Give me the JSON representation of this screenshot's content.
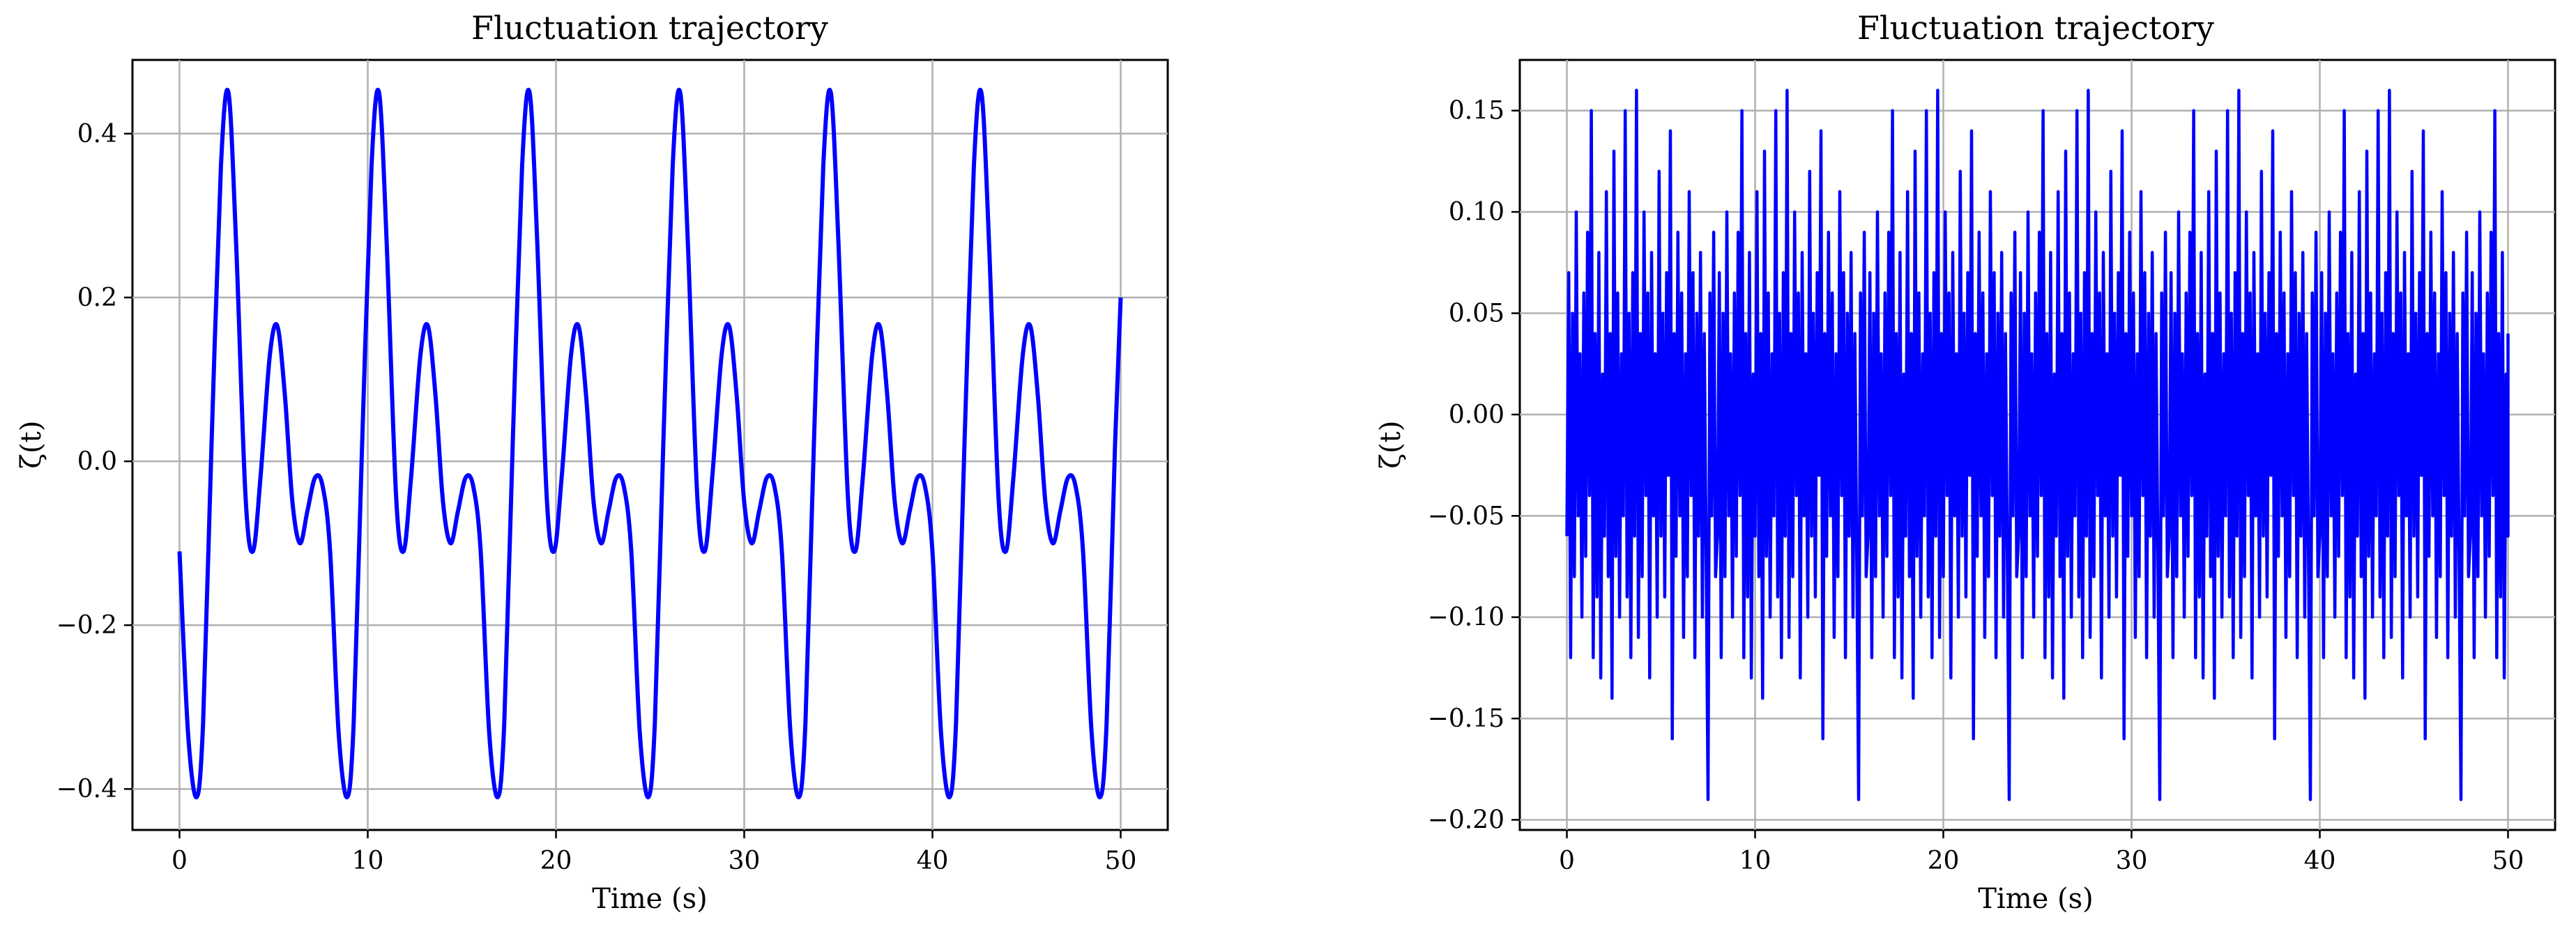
{
  "chart_data": [
    {
      "type": "line",
      "title": "Fluctuation trajectory",
      "xlabel": "Time (s)",
      "ylabel": "ζ(t)",
      "xlim": [
        -2.5,
        52.5
      ],
      "ylim": [
        -0.45,
        0.49
      ],
      "xticks": [
        0,
        10,
        20,
        30,
        40,
        50
      ],
      "xtick_labels": [
        "0",
        "10",
        "20",
        "30",
        "40",
        "50"
      ],
      "yticks": [
        -0.4,
        -0.2,
        0.0,
        0.2,
        0.4
      ],
      "ytick_labels": [
        "−0.4",
        "−0.2",
        "0.0",
        "0.2",
        "0.4"
      ],
      "grid": true,
      "period": 8.0,
      "series": [
        {
          "color": "#0000ff",
          "x": [
            0,
            0.45,
            0.9,
            1.25,
            1.7,
            2.2,
            2.6,
            3.0,
            3.5,
            3.9,
            4.3,
            4.8,
            5.2,
            5.6,
            6.0,
            6.4,
            6.8,
            7.2,
            7.6,
            8.0,
            8.45,
            8.9,
            9.25,
            9.7,
            10.2,
            10.6,
            11.0,
            11.5,
            11.9,
            12.3,
            12.8,
            13.2,
            13.6,
            14.0,
            14.4,
            14.8,
            15.2,
            15.6,
            16.0,
            16.45,
            16.9,
            17.25,
            17.7,
            18.2,
            18.6,
            19.0,
            19.5,
            19.9,
            20.3,
            20.8,
            21.2,
            21.6,
            22.0,
            22.4,
            22.8,
            23.2,
            23.6,
            24.0,
            24.45,
            24.9,
            25.25,
            25.7,
            26.2,
            26.6,
            27.0,
            27.5,
            27.9,
            28.3,
            28.8,
            29.2,
            29.6,
            30.0,
            30.4,
            30.8,
            31.2,
            31.6,
            32.0,
            32.45,
            32.9,
            33.25,
            33.7,
            34.2,
            34.6,
            35.0,
            35.5,
            35.9,
            36.3,
            36.8,
            37.2,
            37.6,
            38.0,
            38.4,
            38.8,
            39.2,
            39.6,
            40.0,
            40.45,
            40.9,
            41.25,
            41.7,
            42.2,
            42.6,
            43.0,
            43.5,
            43.9,
            44.3,
            44.8,
            45.2,
            45.6,
            46.0,
            46.4,
            46.8,
            47.2,
            47.6,
            48.0,
            48.45,
            48.9,
            49.25,
            49.7,
            50.0
          ],
          "y": [
            -0.11,
            -0.33,
            -0.41,
            -0.32,
            0.02,
            0.36,
            0.45,
            0.27,
            -0.04,
            -0.11,
            -0.02,
            0.13,
            0.165,
            0.08,
            -0.05,
            -0.1,
            -0.06,
            -0.02,
            -0.03,
            -0.11,
            -0.33,
            -0.41,
            -0.32,
            0.02,
            0.36,
            0.45,
            0.27,
            -0.04,
            -0.11,
            -0.02,
            0.13,
            0.165,
            0.08,
            -0.05,
            -0.1,
            -0.06,
            -0.02,
            -0.03,
            -0.11,
            -0.33,
            -0.41,
            -0.32,
            0.02,
            0.36,
            0.45,
            0.27,
            -0.04,
            -0.11,
            -0.02,
            0.13,
            0.165,
            0.08,
            -0.05,
            -0.1,
            -0.06,
            -0.02,
            -0.03,
            -0.11,
            -0.33,
            -0.41,
            -0.32,
            0.02,
            0.36,
            0.45,
            0.27,
            -0.04,
            -0.11,
            -0.02,
            0.13,
            0.165,
            0.08,
            -0.05,
            -0.1,
            -0.06,
            -0.02,
            -0.03,
            -0.11,
            -0.33,
            -0.41,
            -0.32,
            0.02,
            0.36,
            0.45,
            0.27,
            -0.04,
            -0.11,
            -0.02,
            0.13,
            0.165,
            0.08,
            -0.05,
            -0.1,
            -0.06,
            -0.02,
            -0.03,
            -0.11,
            -0.33,
            -0.41,
            -0.32,
            0.02,
            0.36,
            0.45,
            0.27,
            -0.04,
            -0.11,
            -0.02,
            0.13,
            0.165,
            0.08,
            -0.05,
            -0.1,
            -0.06,
            -0.02,
            -0.03,
            -0.11,
            -0.33,
            -0.41,
            -0.32,
            0.02,
            0.2
          ]
        }
      ]
    },
    {
      "type": "line",
      "title": "Fluctuation trajectory",
      "xlabel": "Time (s)",
      "ylabel": "ζ(t)",
      "xlim": [
        -2.5,
        52.5
      ],
      "ylim": [
        -0.205,
        0.175
      ],
      "xticks": [
        0,
        10,
        20,
        30,
        40,
        50
      ],
      "xtick_labels": [
        "0",
        "10",
        "20",
        "30",
        "40",
        "50"
      ],
      "yticks": [
        -0.2,
        -0.15,
        -0.1,
        -0.05,
        0.0,
        0.05,
        0.1,
        0.15
      ],
      "ytick_labels": [
        "−0.20",
        "−0.15",
        "−0.10",
        "−0.05",
        "0.00",
        "0.05",
        "0.10",
        "0.15"
      ],
      "grid": true,
      "period": 8.0,
      "series": [
        {
          "color": "#0000ff",
          "x": [
            0.0,
            0.1,
            0.2,
            0.3,
            0.4,
            0.5,
            0.6,
            0.7,
            0.8,
            0.9,
            1.0,
            1.1,
            1.2,
            1.3,
            1.4,
            1.5,
            1.6,
            1.7,
            1.8,
            1.9,
            2.0,
            2.1,
            2.2,
            2.3,
            2.4,
            2.5,
            2.6,
            2.7,
            2.8,
            2.9,
            3.0,
            3.1,
            3.2,
            3.3,
            3.4,
            3.5,
            3.6,
            3.7,
            3.8,
            3.9,
            4.0,
            4.1,
            4.2,
            4.3,
            4.4,
            4.5,
            4.6,
            4.7,
            4.8,
            4.9,
            5.0,
            5.1,
            5.2,
            5.3,
            5.4,
            5.5,
            5.6,
            5.7,
            5.8,
            5.9,
            6.0,
            6.1,
            6.2,
            6.3,
            6.4,
            6.5,
            6.6,
            6.7,
            6.8,
            6.9,
            7.0,
            7.1,
            7.2,
            7.3,
            7.4,
            7.5,
            7.6,
            7.7,
            7.8,
            7.9
          ],
          "y": [
            -0.06,
            0.07,
            -0.12,
            0.05,
            -0.08,
            0.1,
            -0.05,
            0.03,
            -0.1,
            0.06,
            -0.07,
            0.09,
            -0.04,
            0.15,
            -0.12,
            0.04,
            -0.09,
            0.08,
            -0.13,
            0.02,
            -0.06,
            0.11,
            -0.08,
            0.04,
            -0.14,
            0.13,
            -0.07,
            0.06,
            -0.1,
            0.03,
            -0.05,
            0.15,
            -0.09,
            0.05,
            -0.12,
            0.07,
            -0.06,
            0.16,
            -0.11,
            0.04,
            -0.08,
            0.1,
            -0.04,
            0.06,
            -0.13,
            0.08,
            -0.05,
            0.03,
            -0.1,
            0.12,
            -0.06,
            0.05,
            -0.09,
            0.07,
            -0.03,
            0.14,
            -0.16,
            0.04,
            -0.07,
            0.09,
            -0.05,
            0.06,
            -0.11,
            0.03,
            -0.08,
            0.11,
            -0.04,
            0.07,
            -0.12,
            0.05,
            -0.06,
            0.08,
            -0.1,
            0.04,
            -0.07,
            -0.19,
            0.06,
            -0.05,
            0.09,
            -0.08
          ]
        }
      ]
    }
  ]
}
